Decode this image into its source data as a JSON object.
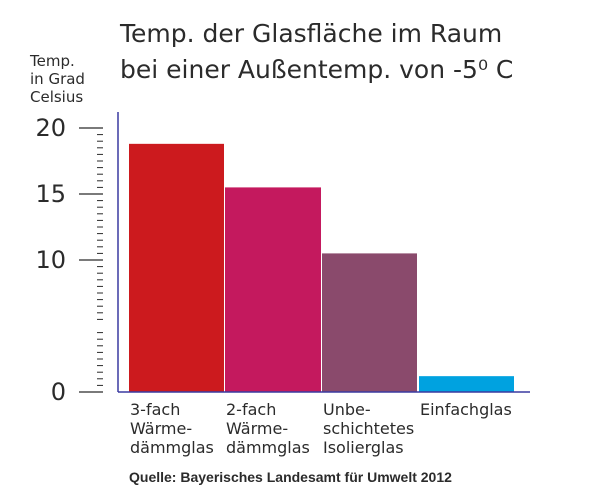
{
  "chart_data": {
    "type": "bar",
    "title": "Temp. der Glasfläche im Raum",
    "subtitle": "bei einer Außentemp. von -5⁰ C",
    "ylabel": [
      "Temp.",
      "in Grad",
      "Celsius"
    ],
    "categories": [
      [
        "3-fach",
        "Wärme-",
        "dämmglas"
      ],
      [
        "2-fach",
        "Wärme-",
        "dämmglas"
      ],
      [
        "Unbe-",
        "schichtetes",
        "Isolierglas"
      ],
      [
        "Einfachglas"
      ]
    ],
    "values": [
      18.8,
      15.5,
      10.5,
      1.2
    ],
    "colors": [
      "#cc1a1e",
      "#c4195e",
      "#8a4a6c",
      "#00a2e0"
    ],
    "yticks": [
      "20",
      "15",
      "10",
      "0"
    ],
    "ytick_values": [
      20,
      15,
      10,
      0
    ],
    "ylim": [
      0,
      20
    ],
    "axis_color": "#3a3aa0",
    "grid": false,
    "source": "Quelle: Bayerisches Landesamt für Umwelt 2012"
  }
}
